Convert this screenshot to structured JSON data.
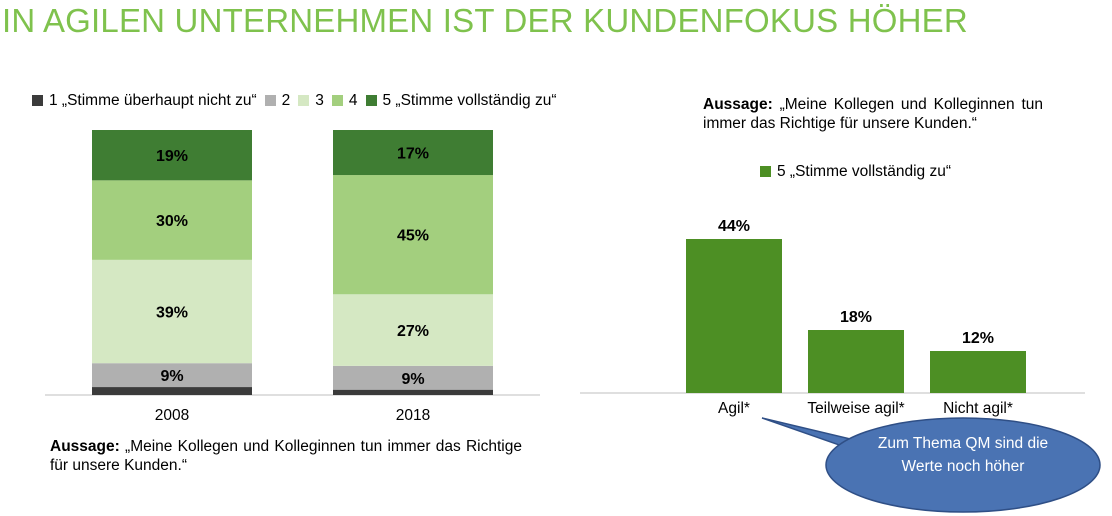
{
  "title": "IN AGILEN UNTERNEHMEN IST DER KUNDENFOKUS HÖHER",
  "colors": {
    "title": "#7fc24d",
    "level_1": "#3b3b3b",
    "level_2": "#b0b0b0",
    "level_3": "#d5e8c3",
    "level_4": "#a3cf7e",
    "level_5": "#3f7d33",
    "agile_bars": "#4d8f24",
    "callout": "#4a73b3"
  },
  "legend_left": [
    {
      "label": "1 „Stimme überhaupt nicht zu“",
      "color": "#3b3b3b"
    },
    {
      "label": "2",
      "color": "#b0b0b0"
    },
    {
      "label": "3",
      "color": "#d5e8c3"
    },
    {
      "label": "4",
      "color": "#a3cf7e"
    },
    {
      "label": "5 „Stimme vollständig zu“",
      "color": "#3f7d33"
    }
  ],
  "statement_left": {
    "prefix": "Aussage:",
    "text": " „Meine Kollegen und Kolleginnen tun immer das Richtige für unsere Kunden.“"
  },
  "statement_right": {
    "prefix": "Aussage:",
    "text": " „Meine Kollegen und Kolleginnen tun immer das Richtige für unsere Kunden.“"
  },
  "legend_right": {
    "label": "5 „Stimme vollständig zu“",
    "color": "#4d8f24"
  },
  "callout": "Zum Thema QM sind die Werte noch höher",
  "chart_data": [
    {
      "type": "bar",
      "stacked": true,
      "percent": true,
      "categories": [
        "2008",
        "2018"
      ],
      "series": [
        {
          "name": "1 „Stimme überhaupt nicht zu“",
          "values": [
            3,
            2
          ],
          "labels": [
            "",
            ""
          ]
        },
        {
          "name": "2",
          "values": [
            9,
            9
          ],
          "labels": [
            "9%",
            "9%"
          ]
        },
        {
          "name": "3",
          "values": [
            39,
            27
          ],
          "labels": [
            "39%",
            "27%"
          ]
        },
        {
          "name": "4",
          "values": [
            30,
            45
          ],
          "labels": [
            "30%",
            "45%"
          ]
        },
        {
          "name": "5 „Stimme vollständig zu“",
          "values": [
            19,
            17
          ],
          "labels": [
            "19%",
            "17%"
          ]
        }
      ],
      "ylim": [
        0,
        100
      ]
    },
    {
      "type": "bar",
      "categories": [
        "Agil*",
        "Teilweise agil*",
        "Nicht agil*"
      ],
      "series": [
        {
          "name": "5 „Stimme vollständig zu“",
          "values": [
            44,
            18,
            12
          ],
          "labels": [
            "44%",
            "18%",
            "12%"
          ]
        }
      ],
      "ylim": [
        0,
        50
      ]
    }
  ]
}
